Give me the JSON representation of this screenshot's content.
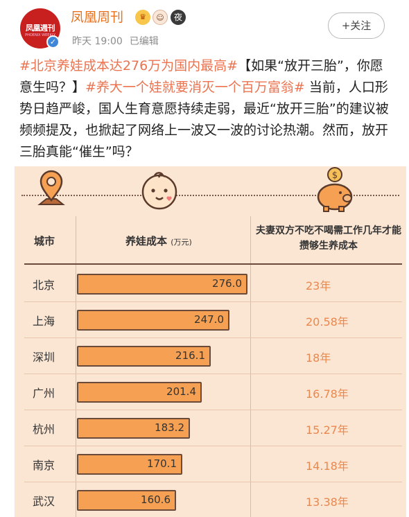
{
  "account": {
    "name": "凤凰周刊",
    "avatar_text": "凤凰週刊",
    "avatar_subtext": "PHOENIX WEEKLY",
    "badges": [
      "crown-icon",
      "face-icon",
      "night-icon"
    ],
    "night_badge_label": "夜",
    "verified_icon": "checkmark-icon",
    "time": "昨天 19:00",
    "edited": "已编辑",
    "follow_label": "+关注"
  },
  "post": {
    "tag1": "#北京养娃成本达276万为国内最高#",
    "text1": "【如果“放开三胎”，你愿意生吗？】",
    "tag2": "#养大一个娃就要消灭一个百万富翁#",
    "text2": " 当前，人口形势日趋严峻，国人生育意愿持续走弱，最近“放开三胎”的建议被频频提及，也掀起了网络上一波又一波的讨论热潮。然而，放开三胎真能“催生”吗？"
  },
  "infographic": {
    "icons": [
      "location-pin-icon",
      "baby-face-icon",
      "piggy-bank-icon"
    ],
    "col_city": "城市",
    "col_cost": "养娃成本",
    "col_cost_unit": "(万元)",
    "col_years": "夫妻双方不吃不喝需工作几年才能攒够生养成本",
    "colors": {
      "bar": "#f5a052",
      "years_text": "#e9884e",
      "background": "#fbe6d4"
    }
  },
  "chart_data": {
    "type": "bar",
    "categories": [
      "北京",
      "上海",
      "深圳",
      "广州",
      "杭州",
      "南京",
      "武汉"
    ],
    "values": [
      276.0,
      247.0,
      216.1,
      201.4,
      183.2,
      170.1,
      160.6
    ],
    "value_labels": [
      "276.0",
      "247.0",
      "216.1",
      "201.4",
      "183.2",
      "170.1",
      "160.6"
    ],
    "years": [
      "23年",
      "20.58年",
      "18年",
      "16.78年",
      "15.27年",
      "14.18年",
      "13.38年"
    ],
    "ylabel": "养娃成本 (万元)"
  }
}
